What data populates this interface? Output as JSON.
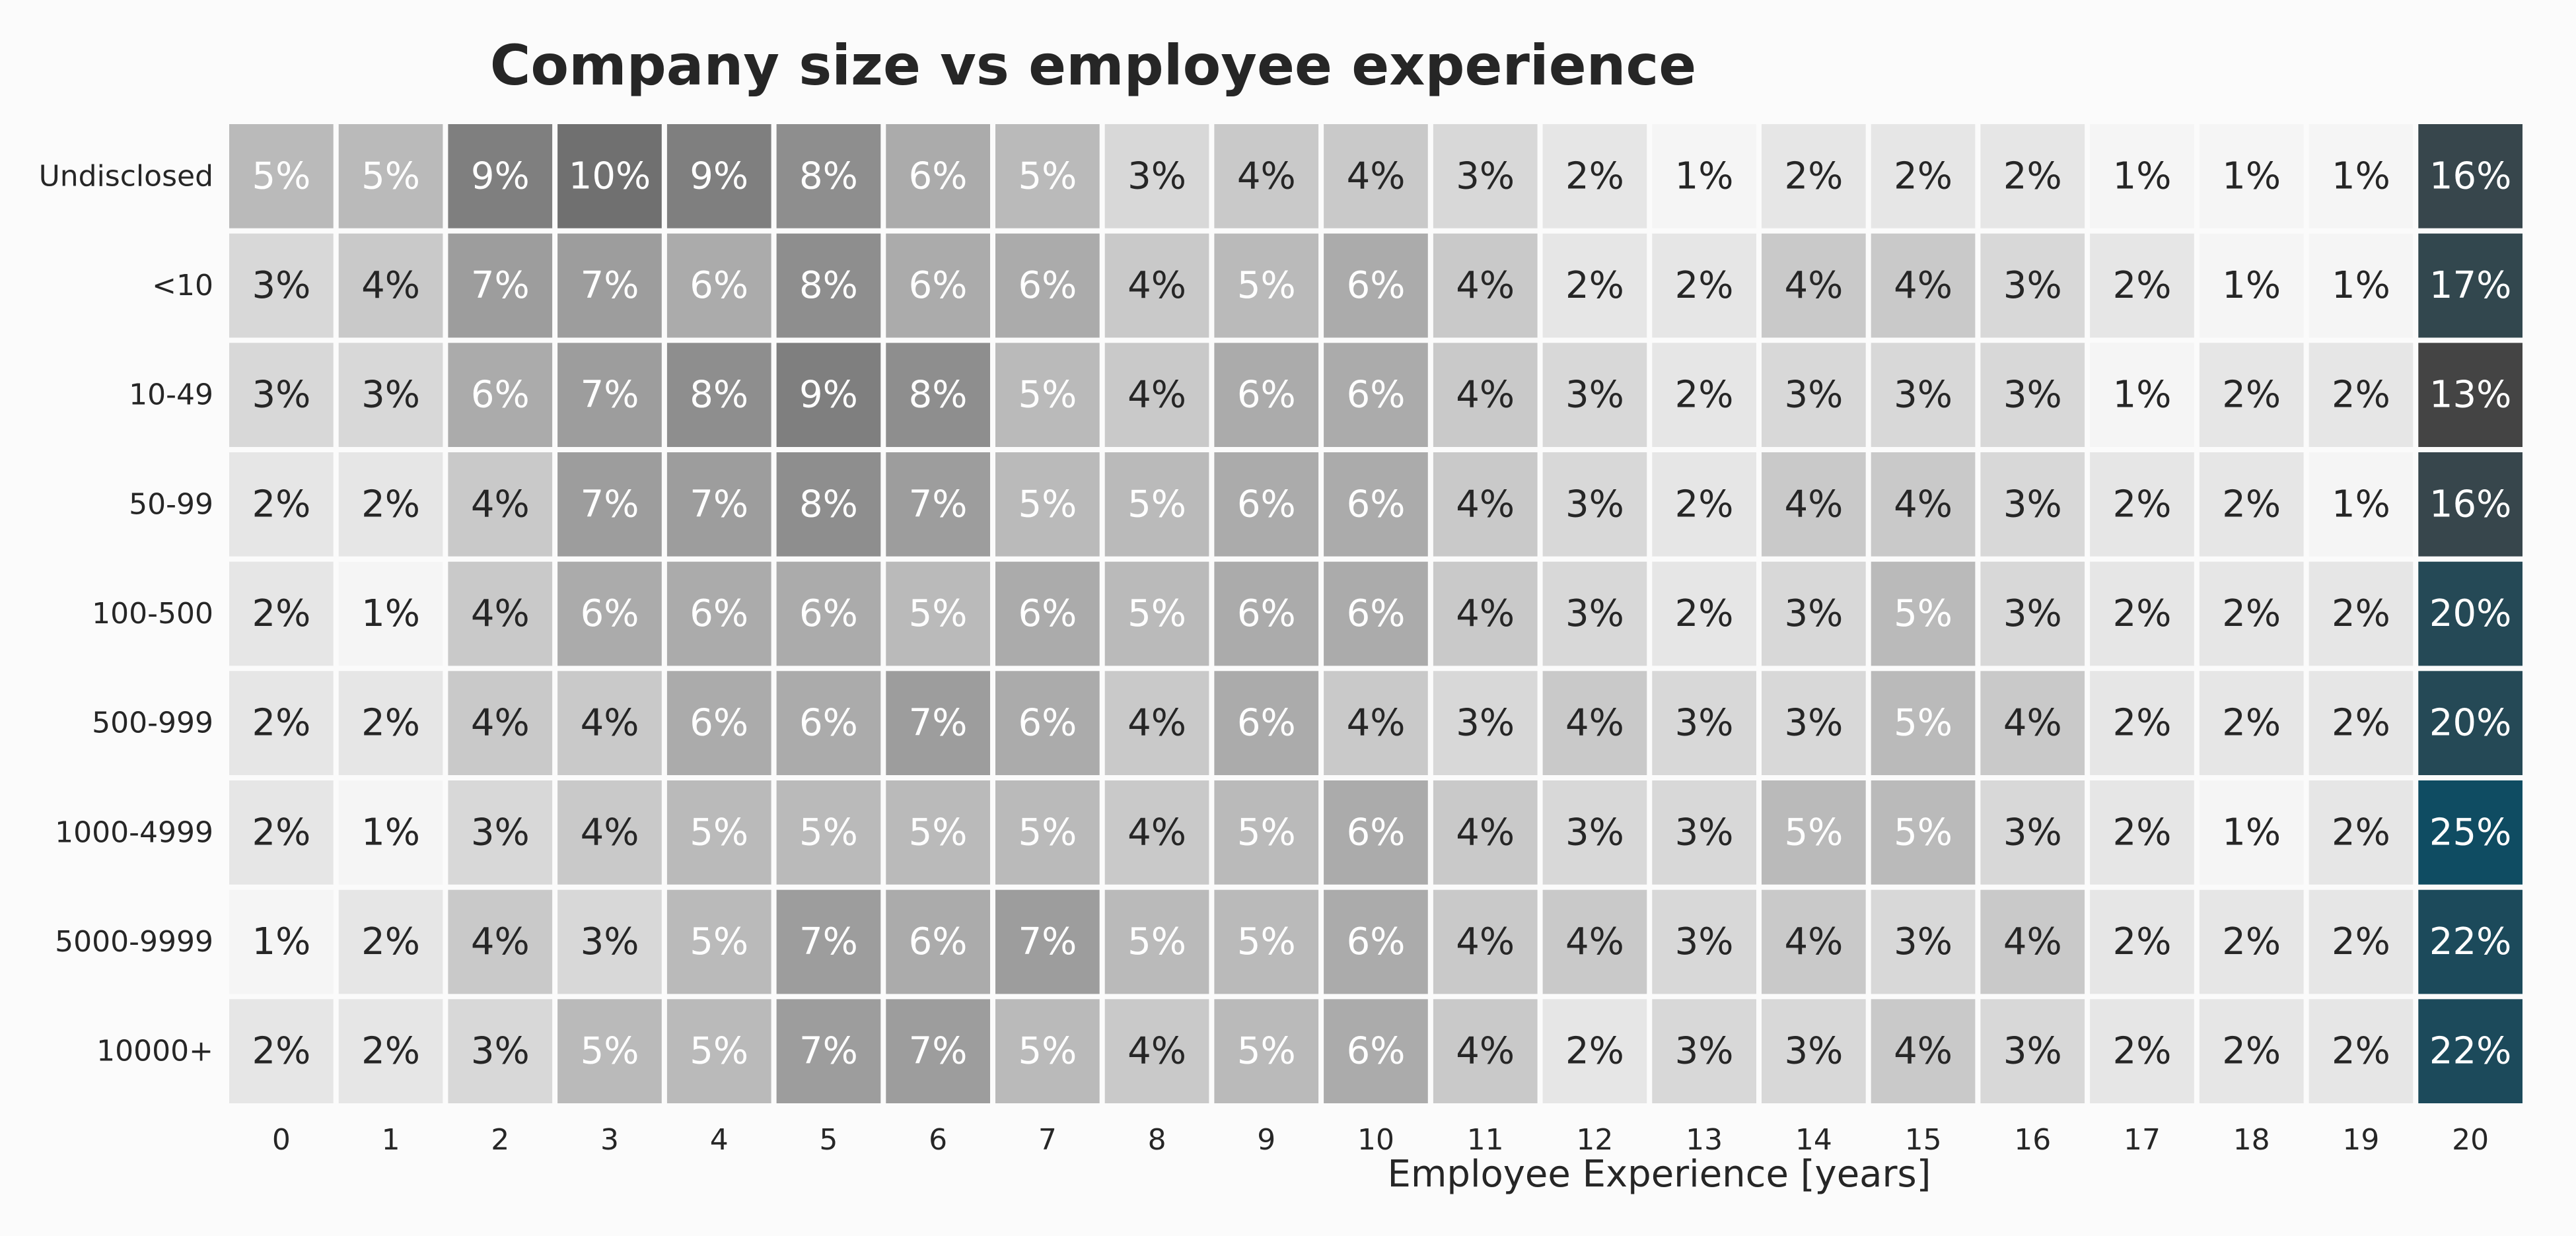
{
  "chart_data": {
    "type": "heatmap",
    "title": "Company size vs employee experience",
    "xlabel": "Employee Experience [years]",
    "ylabel": "",
    "x_categories": [
      "0",
      "1",
      "2",
      "3",
      "4",
      "5",
      "6",
      "7",
      "8",
      "9",
      "10",
      "11",
      "12",
      "13",
      "14",
      "15",
      "16",
      "17",
      "18",
      "19",
      "20"
    ],
    "y_categories": [
      "Undisclosed",
      "<10",
      "10-49",
      "50-99",
      "100-500",
      "500-999",
      "1000-4999",
      "5000-9999",
      "10000+"
    ],
    "value_format": "percent",
    "values": [
      [
        5,
        5,
        9,
        10,
        9,
        8,
        6,
        5,
        3,
        4,
        4,
        3,
        2,
        1,
        2,
        2,
        2,
        1,
        1,
        1,
        16
      ],
      [
        3,
        4,
        7,
        7,
        6,
        8,
        6,
        6,
        4,
        5,
        6,
        4,
        2,
        2,
        4,
        4,
        3,
        2,
        1,
        1,
        17
      ],
      [
        3,
        3,
        6,
        7,
        8,
        9,
        8,
        5,
        4,
        6,
        6,
        4,
        3,
        2,
        3,
        3,
        3,
        1,
        2,
        2,
        13
      ],
      [
        2,
        2,
        4,
        7,
        7,
        8,
        7,
        5,
        5,
        6,
        6,
        4,
        3,
        2,
        4,
        4,
        3,
        2,
        2,
        1,
        16
      ],
      [
        2,
        1,
        4,
        6,
        6,
        6,
        5,
        6,
        5,
        6,
        6,
        4,
        3,
        2,
        3,
        5,
        3,
        2,
        2,
        2,
        20
      ],
      [
        2,
        2,
        4,
        4,
        6,
        6,
        7,
        6,
        4,
        6,
        4,
        3,
        4,
        3,
        3,
        5,
        4,
        2,
        2,
        2,
        20
      ],
      [
        2,
        1,
        3,
        4,
        5,
        5,
        5,
        5,
        4,
        5,
        6,
        4,
        3,
        3,
        5,
        5,
        3,
        2,
        1,
        2,
        25
      ],
      [
        1,
        2,
        4,
        3,
        5,
        7,
        6,
        7,
        5,
        5,
        6,
        4,
        4,
        3,
        4,
        3,
        4,
        2,
        2,
        2,
        22
      ],
      [
        2,
        2,
        3,
        5,
        5,
        7,
        7,
        5,
        4,
        5,
        6,
        4,
        2,
        3,
        3,
        4,
        3,
        2,
        2,
        2,
        22
      ]
    ],
    "cell_labels": [
      [
        "5%",
        "5%",
        "9%",
        "10%",
        "9%",
        "8%",
        "6%",
        "5%",
        "3%",
        "4%",
        "4%",
        "3%",
        "2%",
        "1%",
        "2%",
        "2%",
        "2%",
        "1%",
        "1%",
        "1%",
        "16%"
      ],
      [
        "3%",
        "4%",
        "7%",
        "7%",
        "6%",
        "8%",
        "6%",
        "6%",
        "4%",
        "5%",
        "6%",
        "4%",
        "2%",
        "2%",
        "4%",
        "4%",
        "3%",
        "2%",
        "1%",
        "1%",
        "17%"
      ],
      [
        "3%",
        "3%",
        "6%",
        "7%",
        "8%",
        "9%",
        "8%",
        "5%",
        "4%",
        "6%",
        "6%",
        "4%",
        "3%",
        "2%",
        "3%",
        "3%",
        "3%",
        "1%",
        "2%",
        "2%",
        "13%"
      ],
      [
        "2%",
        "2%",
        "4%",
        "7%",
        "7%",
        "8%",
        "7%",
        "5%",
        "5%",
        "6%",
        "6%",
        "4%",
        "3%",
        "2%",
        "4%",
        "4%",
        "3%",
        "2%",
        "2%",
        "1%",
        "16%"
      ],
      [
        "2%",
        "1%",
        "4%",
        "6%",
        "6%",
        "6%",
        "5%",
        "6%",
        "5%",
        "6%",
        "6%",
        "4%",
        "3%",
        "2%",
        "3%",
        "5%",
        "3%",
        "2%",
        "2%",
        "2%",
        "20%"
      ],
      [
        "2%",
        "2%",
        "4%",
        "4%",
        "6%",
        "6%",
        "7%",
        "6%",
        "4%",
        "6%",
        "4%",
        "3%",
        "4%",
        "3%",
        "3%",
        "5%",
        "4%",
        "2%",
        "2%",
        "2%",
        "20%"
      ],
      [
        "2%",
        "1%",
        "3%",
        "4%",
        "5%",
        "5%",
        "5%",
        "5%",
        "4%",
        "5%",
        "6%",
        "4%",
        "3%",
        "3%",
        "5%",
        "5%",
        "3%",
        "2%",
        "1%",
        "2%",
        "25%"
      ],
      [
        "1%",
        "2%",
        "4%",
        "3%",
        "5%",
        "7%",
        "6%",
        "7%",
        "5%",
        "5%",
        "6%",
        "4%",
        "4%",
        "3%",
        "4%",
        "3%",
        "4%",
        "2%",
        "2%",
        "2%",
        "22%"
      ],
      [
        "2%",
        "2%",
        "3%",
        "5%",
        "5%",
        "7%",
        "7%",
        "5%",
        "4%",
        "5%",
        "6%",
        "4%",
        "2%",
        "3%",
        "3%",
        "4%",
        "3%",
        "2%",
        "2%",
        "2%",
        "22%"
      ]
    ],
    "colormap": {
      "low": "#f5f5f5",
      "mid": "#444444",
      "high": "#0f4c62"
    },
    "grid": false,
    "colorbar": false
  }
}
